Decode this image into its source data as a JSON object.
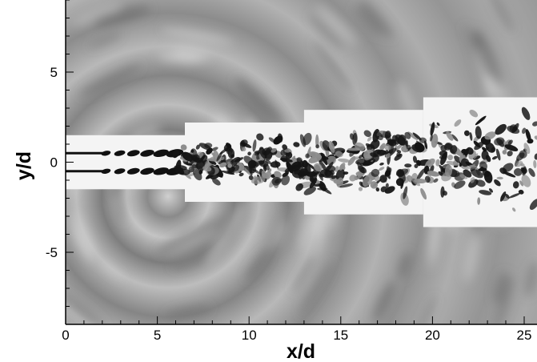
{
  "figure": {
    "xlabel": "x/d",
    "ylabel": "y/d"
  },
  "chart_data": {
    "type": "heatmap",
    "description_of_field": "grayscale flow field (jet wake) with outer acoustic ripples and inner turbulent vortices",
    "xlabel": "x/d",
    "ylabel": "y/d",
    "xlim": [
      0,
      25.7
    ],
    "ylim": [
      -9,
      9
    ],
    "x_ticks": [
      0,
      5,
      10,
      15,
      20,
      25
    ],
    "y_ticks": [
      5,
      0,
      -5
    ],
    "grid": false,
    "inner_domains": [
      {
        "x": [
          0,
          6.5
        ],
        "y": [
          -1.5,
          1.5
        ]
      },
      {
        "x": [
          6.5,
          13
        ],
        "y": [
          -2.2,
          2.2
        ]
      },
      {
        "x": [
          13,
          19.5
        ],
        "y": [
          -2.9,
          2.9
        ]
      },
      {
        "x": [
          19.5,
          25.7
        ],
        "y": [
          -3.6,
          3.6
        ]
      }
    ],
    "jet_centers_y": [
      0.5,
      -0.5
    ]
  },
  "colors": {
    "background_field": "#9a9a9a",
    "inner_domain": "#f4f4f4",
    "vortex": "#111111"
  }
}
